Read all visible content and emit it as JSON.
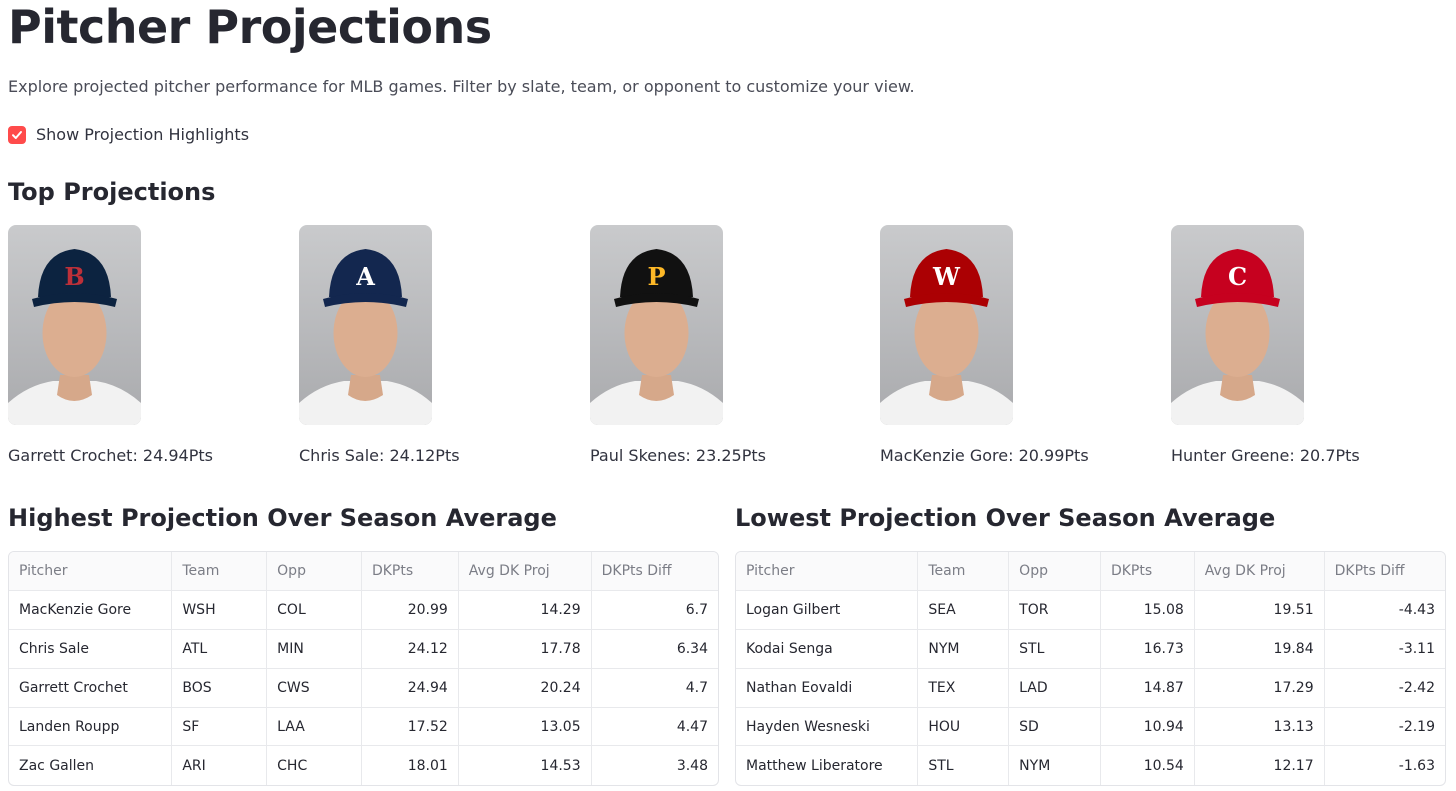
{
  "header": {
    "title": "Pitcher Projections",
    "subtitle": "Explore projected pitcher performance for MLB games. Filter by slate, team, or opponent to customize your view."
  },
  "highlights_toggle": {
    "label": "Show Projection Highlights",
    "checked": true,
    "color": "#ff4b4b"
  },
  "top_projections": {
    "heading": "Top Projections",
    "players": [
      {
        "caption": "Garrett Crochet: 24.94Pts",
        "cap_color": "#0c2340",
        "logo": "B",
        "logo_color": "#bd3039"
      },
      {
        "caption": "Chris Sale: 24.12Pts",
        "cap_color": "#13274f",
        "logo": "A",
        "logo_color": "#ffffff"
      },
      {
        "caption": "Paul Skenes: 23.25Pts",
        "cap_color": "#111111",
        "logo": "P",
        "logo_color": "#fdb827"
      },
      {
        "caption": "MacKenzie Gore: 20.99Pts",
        "cap_color": "#ab0003",
        "logo": "W",
        "logo_color": "#ffffff"
      },
      {
        "caption": "Hunter Greene: 20.7Pts",
        "cap_color": "#c6011f",
        "logo": "C",
        "logo_color": "#ffffff"
      }
    ]
  },
  "highest_table": {
    "heading": "Highest Projection Over Season Average",
    "columns": [
      "Pitcher",
      "Team",
      "Opp",
      "DKPts",
      "Avg DK Proj",
      "DKPts Diff"
    ],
    "rows": [
      [
        "MacKenzie Gore",
        "WSH",
        "COL",
        "20.99",
        "14.29",
        "6.7"
      ],
      [
        "Chris Sale",
        "ATL",
        "MIN",
        "24.12",
        "17.78",
        "6.34"
      ],
      [
        "Garrett Crochet",
        "BOS",
        "CWS",
        "24.94",
        "20.24",
        "4.7"
      ],
      [
        "Landen Roupp",
        "SF",
        "LAA",
        "17.52",
        "13.05",
        "4.47"
      ],
      [
        "Zac Gallen",
        "ARI",
        "CHC",
        "18.01",
        "14.53",
        "3.48"
      ]
    ]
  },
  "lowest_table": {
    "heading": "Lowest Projection Over Season Average",
    "columns": [
      "Pitcher",
      "Team",
      "Opp",
      "DKPts",
      "Avg DK Proj",
      "DKPts Diff"
    ],
    "rows": [
      [
        "Logan Gilbert",
        "SEA",
        "TOR",
        "15.08",
        "19.51",
        "-4.43"
      ],
      [
        "Kodai Senga",
        "NYM",
        "STL",
        "16.73",
        "19.84",
        "-3.11"
      ],
      [
        "Nathan Eovaldi",
        "TEX",
        "LAD",
        "14.87",
        "17.29",
        "-2.42"
      ],
      [
        "Hayden Wesneski",
        "HOU",
        "SD",
        "10.94",
        "13.13",
        "-2.19"
      ],
      [
        "Matthew Liberatore",
        "STL",
        "NYM",
        "10.54",
        "12.17",
        "-1.63"
      ]
    ]
  }
}
